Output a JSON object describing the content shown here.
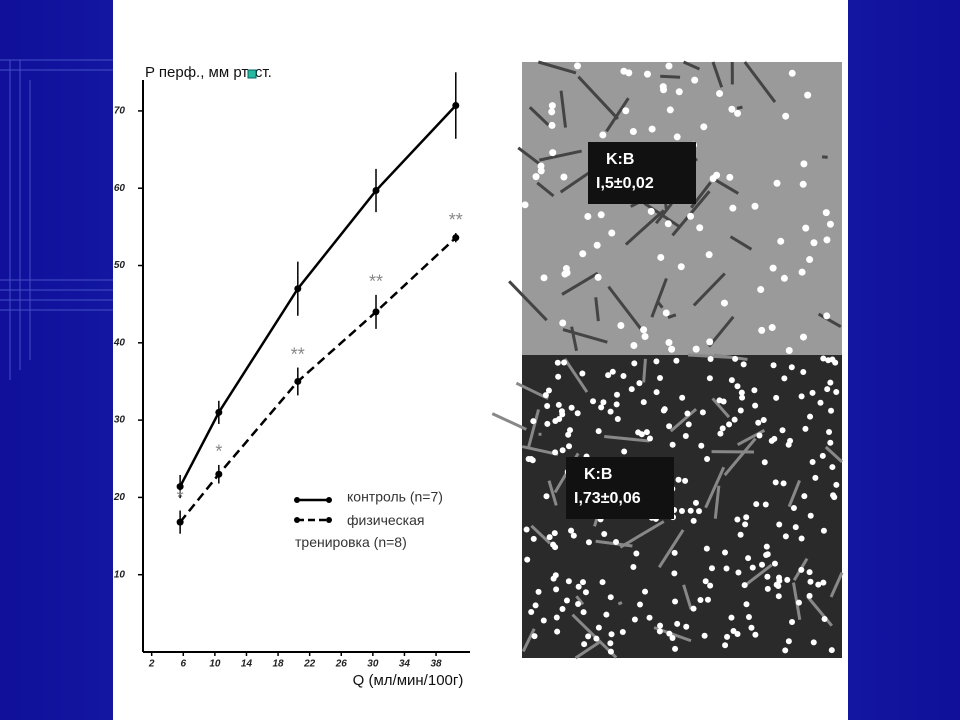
{
  "chart_data": {
    "type": "line",
    "ylabel": "P перф., мм рт. ст.",
    "xlabel": "Q (мл/мин/100г)",
    "xlim": [
      0.9,
      42.3
    ],
    "xticks": [
      2,
      6,
      10,
      14,
      18,
      22,
      26,
      30,
      34,
      38
    ],
    "ylim": [
      0,
      74
    ],
    "yticks": [
      10,
      20,
      30,
      40,
      50,
      60,
      70
    ],
    "series": [
      {
        "name": "контроль (n=7)",
        "color": "#000000",
        "line_style": "solid",
        "x": [
          5.6,
          10.5,
          20.5,
          30.4,
          40.5
        ],
        "values": [
          21.4,
          31,
          47,
          59.7,
          70.7
        ],
        "errors": [
          1.5,
          1.5,
          3.5,
          2.8,
          4.3
        ]
      },
      {
        "name": "физическая тренировка (n=8)",
        "color": "#000000",
        "line_style": "dashed",
        "x": [
          5.6,
          10.5,
          20.5,
          30.4,
          40.5
        ],
        "values": [
          16.8,
          23,
          35,
          44,
          53.6
        ],
        "errors": [
          1.5,
          1.2,
          1.8,
          2.2,
          0.6
        ],
        "significance": [
          "*",
          "*",
          "**",
          "**",
          "**"
        ]
      }
    ]
  },
  "micrographs": [
    {
      "title": "K:B",
      "value": "I,5±0,02"
    },
    {
      "title": "K:B",
      "value": "I,73±0,06"
    }
  ]
}
